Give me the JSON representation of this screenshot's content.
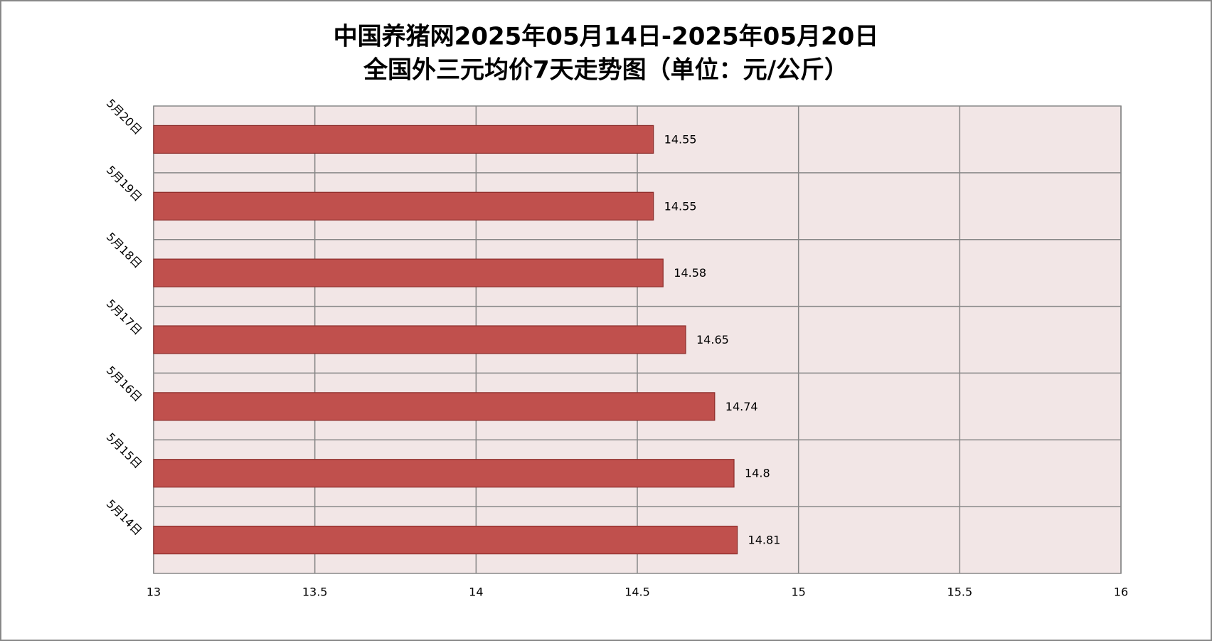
{
  "chart_data": {
    "type": "bar",
    "orientation": "horizontal",
    "title": [
      "中国养猪网2025年05月14日-2025年05月20日",
      "全国外三元均价7天走势图（单位：元/公斤）"
    ],
    "categories": [
      "5月20日",
      "5月19日",
      "5月18日",
      "5月17日",
      "5月16日",
      "5月15日",
      "5月14日"
    ],
    "values": [
      14.55,
      14.55,
      14.58,
      14.65,
      14.74,
      14.8,
      14.81
    ],
    "color": "#c0504d",
    "xlim": [
      13,
      16
    ],
    "xticks": [
      13,
      13.5,
      14,
      14.5,
      15,
      15.5,
      16
    ],
    "grid": true
  }
}
